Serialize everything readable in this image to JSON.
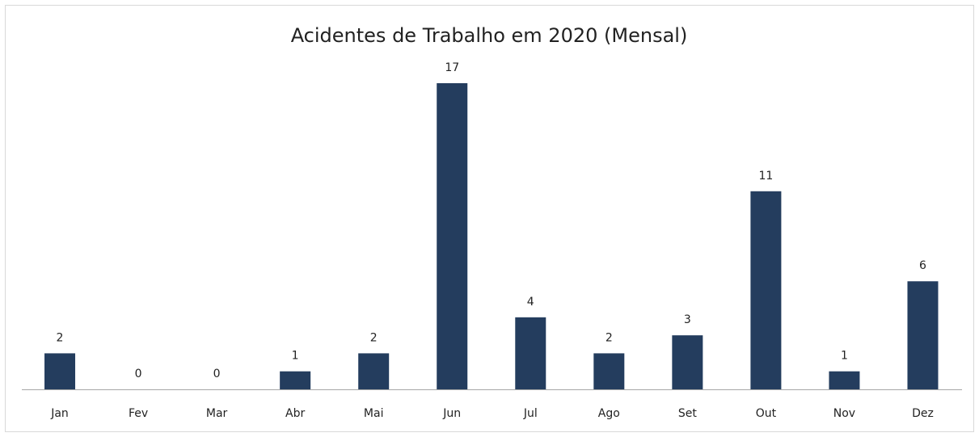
{
  "chart_data": {
    "type": "bar",
    "title": "Acidentes de Trabalho em 2020 (Mensal)",
    "categories": [
      "Jan",
      "Fev",
      "Mar",
      "Abr",
      "Mai",
      "Jun",
      "Jul",
      "Ago",
      "Set",
      "Out",
      "Nov",
      "Dez"
    ],
    "values": [
      2,
      0,
      0,
      1,
      2,
      17,
      4,
      2,
      3,
      11,
      1,
      6
    ],
    "color": "#243d5e"
  }
}
